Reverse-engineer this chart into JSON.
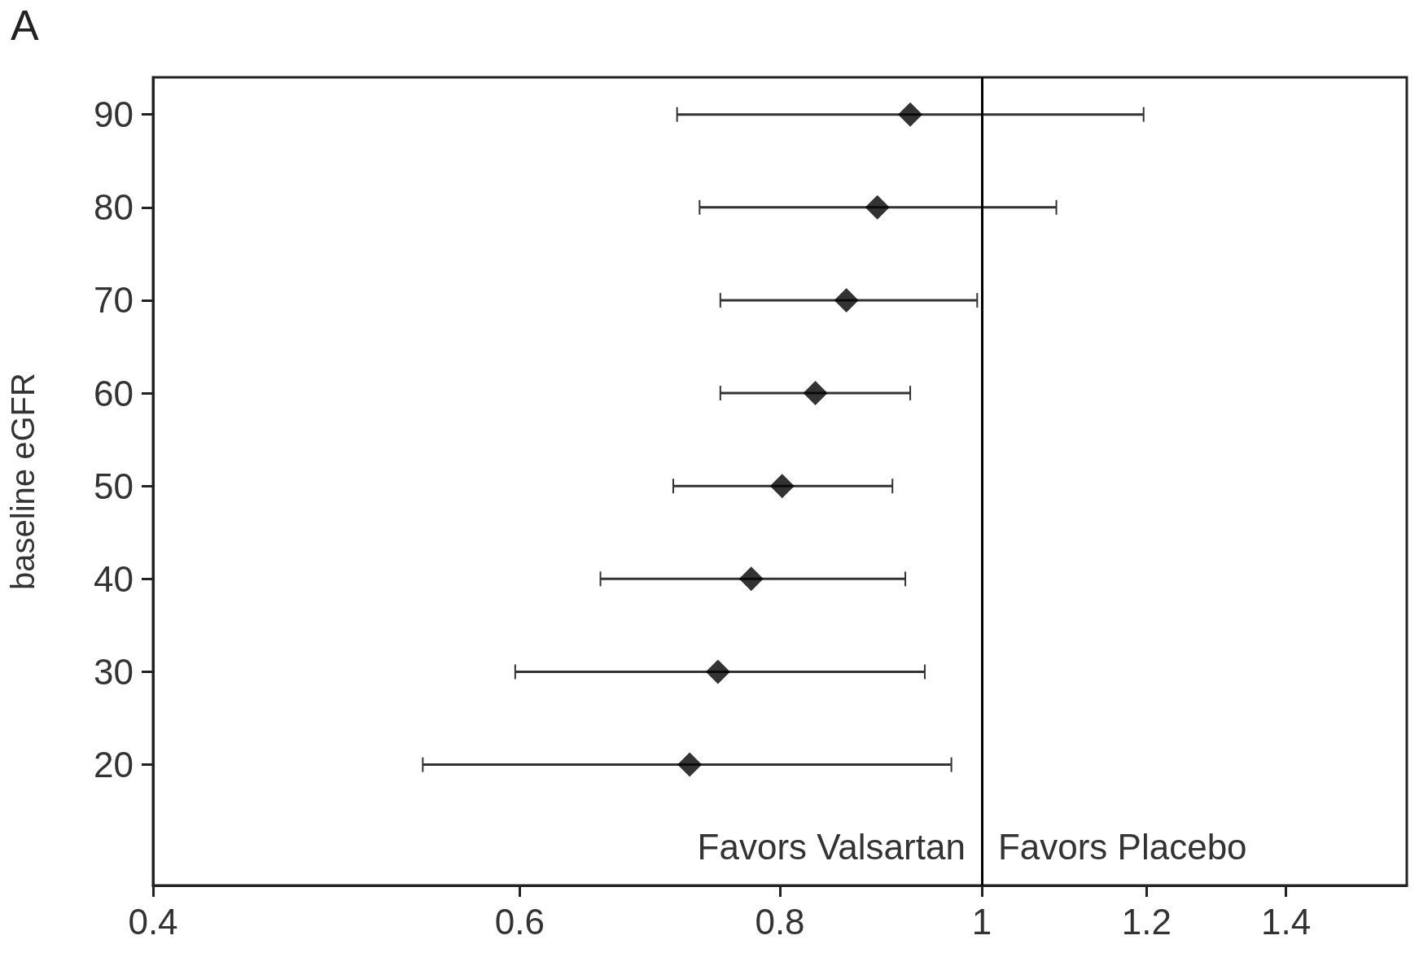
{
  "chart_data": {
    "type": "scatter",
    "title": "A",
    "ylabel": "baseline eGFR",
    "series": [
      {
        "color": "#000000",
        "x": [
          0.924,
          0.891,
          0.861,
          0.832,
          0.802,
          0.775,
          0.747,
          0.724
        ],
        "values": [
          90,
          80,
          70,
          60,
          50,
          40,
          30,
          20
        ],
        "xerrors": [
          [
            0.714,
            1.196
          ],
          [
            0.732,
            1.086
          ],
          [
            0.749,
            0.995
          ],
          [
            0.749,
            0.924
          ],
          [
            0.711,
            0.906
          ],
          [
            0.656,
            0.919
          ],
          [
            0.597,
            0.939
          ],
          [
            0.539,
            0.967
          ]
        ]
      }
    ],
    "marker": "diamond",
    "log": "x",
    "grid": false,
    "xlim": [
      0.4,
      1.6
    ],
    "xticks": [
      0.4,
      0.6,
      0.8,
      1,
      1.2,
      1.4
    ],
    "ylim": [
      7,
      94
    ],
    "yticks": [
      20,
      30,
      40,
      50,
      60,
      70,
      80,
      90
    ],
    "ref_lines": [
      {
        "axis": "x",
        "value": 1,
        "color": "#000000"
      }
    ],
    "annotations": [
      "Favors Valsartan",
      "Favors Placebo"
    ]
  }
}
